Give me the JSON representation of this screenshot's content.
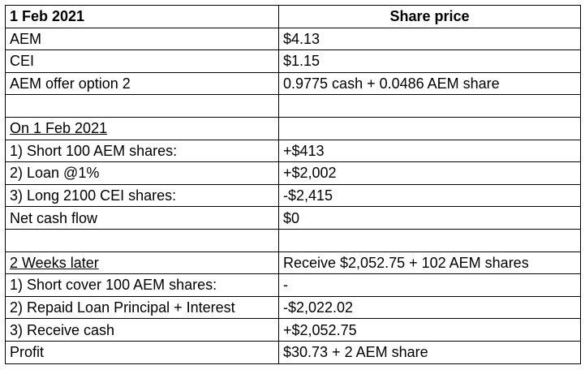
{
  "header": {
    "date": "1 Feb 2021",
    "column": "Share price"
  },
  "prices": [
    {
      "label": "AEM",
      "value": "$4.13"
    },
    {
      "label": "CEI",
      "value": "$1.15"
    },
    {
      "label": "AEM offer option 2",
      "value": "0.9775 cash + 0.0486 AEM share"
    }
  ],
  "section1": {
    "title": "On 1 Feb 2021",
    "value": "",
    "rows": [
      {
        "label": "1) Short 100 AEM shares:",
        "value": "+$413"
      },
      {
        "label": "2) Loan @1%",
        "value": "+$2,002"
      },
      {
        "label": "3) Long 2100 CEI shares:",
        "value": "-$2,415"
      },
      {
        "label": "Net cash flow",
        "value": "$0"
      }
    ]
  },
  "section2": {
    "title": "2 Weeks later",
    "value": "Receive $2,052.75 + 102 AEM shares",
    "rows": [
      {
        "label": "1) Short cover 100 AEM shares:",
        "value": "-"
      },
      {
        "label": "2) Repaid Loan Principal + Interest",
        "value": "-$2,022.02"
      },
      {
        "label": "3) Receive cash",
        "value": "+$2,052.75"
      },
      {
        "label": "Profit",
        "value": "$30.73 + 2 AEM share"
      }
    ]
  }
}
